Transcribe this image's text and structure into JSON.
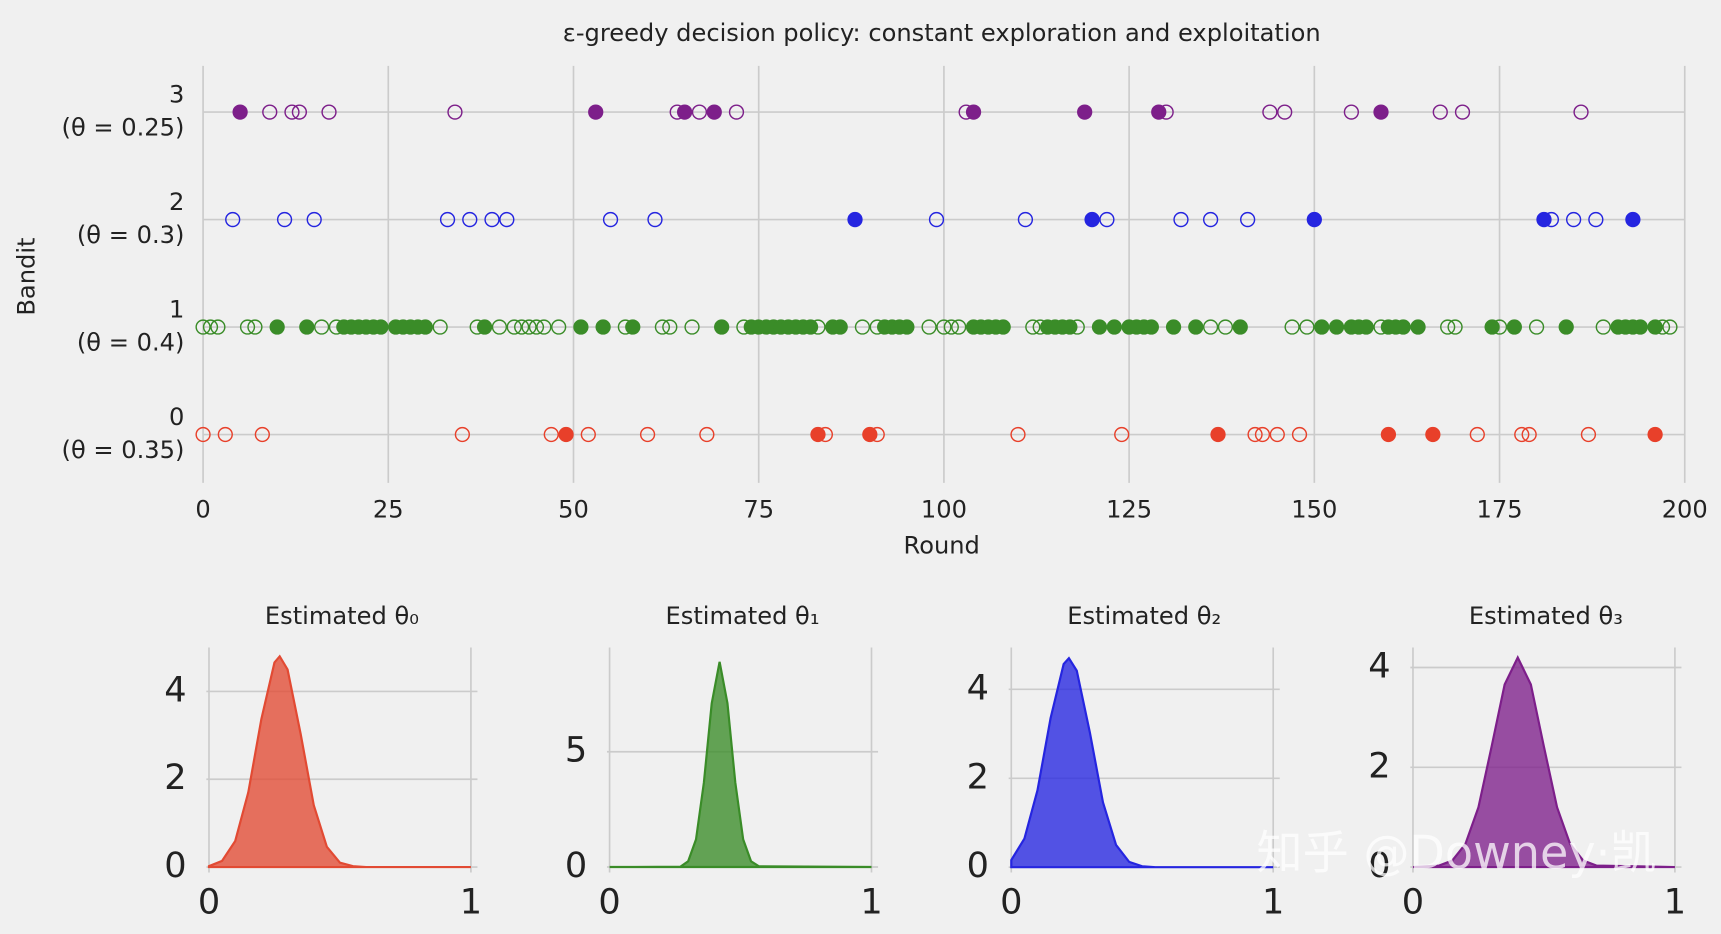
{
  "watermark": "知乎 @Downey·凯",
  "chart_data": [
    {
      "type": "scatter",
      "title": "ε-greedy decision policy: constant exploration and exploitation",
      "xlabel": "Round",
      "ylabel": "Bandit",
      "xlim": [
        0,
        200
      ],
      "xticks": [
        0,
        25,
        50,
        75,
        100,
        125,
        150,
        175,
        200
      ],
      "ylim": [
        -0.45,
        3.43
      ],
      "yticks": [
        0,
        1,
        2,
        3
      ],
      "ytick_notes": [
        "(θ = 0.35)",
        "(θ = 0.4)",
        "(θ = 0.3)",
        "(θ = 0.25)"
      ],
      "grid": true,
      "series": [
        {
          "color": "#e8402a",
          "marker": "open",
          "x": [
            0,
            3,
            8,
            35,
            47,
            52,
            60,
            68,
            84,
            91,
            110,
            124,
            142,
            143,
            145,
            148,
            172,
            178,
            179,
            187
          ],
          "values": [
            0,
            0,
            0,
            0,
            0,
            0,
            0,
            0,
            0,
            0,
            0,
            0,
            0,
            0,
            0,
            0,
            0,
            0,
            0,
            0
          ]
        },
        {
          "color": "#e8402a",
          "marker": "filled",
          "x": [
            49,
            83,
            90,
            137,
            160,
            166,
            196
          ],
          "values": [
            0,
            0,
            0,
            0,
            0,
            0,
            0
          ]
        },
        {
          "color": "#3a8c28",
          "marker": "open",
          "x": [
            0,
            1,
            2,
            6,
            7,
            16,
            18,
            32,
            37,
            40,
            42,
            43,
            44,
            45,
            46,
            48,
            57,
            62,
            63,
            66,
            73,
            83,
            89,
            91,
            98,
            100,
            101,
            102,
            112,
            113,
            118,
            136,
            138,
            147,
            149,
            159,
            168,
            169,
            175,
            180,
            189,
            197,
            198
          ],
          "values": [
            1,
            1,
            1,
            1,
            1,
            1,
            1,
            1,
            1,
            1,
            1,
            1,
            1,
            1,
            1,
            1,
            1,
            1,
            1,
            1,
            1,
            1,
            1,
            1,
            1,
            1,
            1,
            1,
            1,
            1,
            1,
            1,
            1,
            1,
            1,
            1,
            1,
            1,
            1,
            1,
            1,
            1,
            1
          ]
        },
        {
          "color": "#3a8c28",
          "marker": "filled",
          "x": [
            10,
            14,
            19,
            20,
            21,
            22,
            23,
            24,
            26,
            27,
            28,
            29,
            30,
            38,
            51,
            54,
            58,
            70,
            74,
            75,
            76,
            77,
            78,
            79,
            80,
            81,
            82,
            85,
            86,
            92,
            93,
            94,
            95,
            104,
            105,
            106,
            107,
            108,
            114,
            115,
            116,
            117,
            121,
            123,
            125,
            126,
            127,
            128,
            131,
            134,
            140,
            151,
            153,
            155,
            156,
            157,
            160,
            161,
            162,
            164,
            174,
            177,
            184,
            191,
            192,
            193,
            194,
            196
          ],
          "values": [
            1,
            1,
            1,
            1,
            1,
            1,
            1,
            1,
            1,
            1,
            1,
            1,
            1,
            1,
            1,
            1,
            1,
            1,
            1,
            1,
            1,
            1,
            1,
            1,
            1,
            1,
            1,
            1,
            1,
            1,
            1,
            1,
            1,
            1,
            1,
            1,
            1,
            1,
            1,
            1,
            1,
            1,
            1,
            1,
            1,
            1,
            1,
            1,
            1,
            1,
            1,
            1,
            1,
            1,
            1,
            1,
            1,
            1,
            1,
            1,
            1,
            1,
            1,
            1,
            1,
            1,
            1,
            1
          ]
        },
        {
          "color": "#2525e0",
          "marker": "open",
          "x": [
            4,
            11,
            15,
            33,
            36,
            39,
            41,
            55,
            61,
            99,
            111,
            122,
            132,
            136,
            141,
            182,
            185,
            188
          ],
          "values": [
            2,
            2,
            2,
            2,
            2,
            2,
            2,
            2,
            2,
            2,
            2,
            2,
            2,
            2,
            2,
            2,
            2,
            2
          ]
        },
        {
          "color": "#2525e0",
          "marker": "filled",
          "x": [
            88,
            120,
            150,
            181,
            193
          ],
          "values": [
            2,
            2,
            2,
            2,
            2
          ]
        },
        {
          "color": "#7d1f8a",
          "marker": "open",
          "x": [
            9,
            12,
            13,
            17,
            34,
            64,
            67,
            72,
            103,
            130,
            144,
            146,
            155,
            167,
            170,
            186
          ],
          "values": [
            3,
            3,
            3,
            3,
            3,
            3,
            3,
            3,
            3,
            3,
            3,
            3,
            3,
            3,
            3,
            3
          ]
        },
        {
          "color": "#7d1f8a",
          "marker": "filled",
          "x": [
            5,
            53,
            65,
            69,
            104,
            119,
            129,
            159
          ],
          "values": [
            3,
            3,
            3,
            3,
            3,
            3,
            3,
            3
          ]
        }
      ]
    },
    {
      "type": "area",
      "title": "Estimated θ₀",
      "color": "#e24a33",
      "grid": true,
      "xlim": [
        -0.01,
        1.025
      ],
      "xticks": [
        0,
        1
      ],
      "ylim": [
        -0.125,
        5.0
      ],
      "yticks": [
        0,
        2,
        4
      ],
      "x": [
        0,
        0.05,
        0.1,
        0.15,
        0.2,
        0.25,
        0.27,
        0.3,
        0.35,
        0.4,
        0.45,
        0.5,
        0.55,
        0.6,
        1
      ],
      "values": [
        0.02,
        0.14,
        0.59,
        1.7,
        3.37,
        4.66,
        4.8,
        4.5,
        3.03,
        1.41,
        0.46,
        0.1,
        0.02,
        0,
        0
      ]
    },
    {
      "type": "area",
      "title": "Estimated θ₁",
      "color": "#3a8c28",
      "grid": true,
      "xlim": [
        -0.01,
        1.025
      ],
      "xticks": [
        0,
        1
      ],
      "ylim": [
        -0.24,
        9.52
      ],
      "yticks": [
        0,
        5
      ],
      "x": [
        0,
        0.27,
        0.3,
        0.33,
        0.36,
        0.39,
        0.42,
        0.45,
        0.48,
        0.51,
        0.54,
        0.57,
        1
      ],
      "values": [
        0,
        0.01,
        0.25,
        1.2,
        3.66,
        7.1,
        8.9,
        7.1,
        3.66,
        1.2,
        0.25,
        0.03,
        0
      ]
    },
    {
      "type": "area",
      "title": "Estimated θ₂",
      "color": "#2525e0",
      "grid": true,
      "xlim": [
        -0.01,
        1.025
      ],
      "xticks": [
        0,
        1
      ],
      "ylim": [
        -0.12,
        4.94
      ],
      "yticks": [
        0,
        2,
        4
      ],
      "x": [
        0,
        0.05,
        0.1,
        0.15,
        0.2,
        0.22,
        0.25,
        0.3,
        0.35,
        0.4,
        0.45,
        0.5,
        0.55,
        1
      ],
      "values": [
        0.16,
        0.64,
        1.73,
        3.35,
        4.57,
        4.7,
        4.42,
        3.03,
        1.46,
        0.5,
        0.12,
        0.02,
        0,
        0
      ]
    },
    {
      "type": "area",
      "title": "Estimated θ₃",
      "color": "#7d1f8a",
      "grid": true,
      "xlim": [
        -0.01,
        1.025
      ],
      "xticks": [
        0,
        1
      ],
      "ylim": [
        -0.11,
        4.4
      ],
      "yticks": [
        0,
        2,
        4
      ],
      "x": [
        0,
        0.1,
        0.15,
        0.2,
        0.25,
        0.3,
        0.35,
        0.4,
        0.45,
        0.5,
        0.55,
        0.6,
        0.65,
        0.7,
        1
      ],
      "values": [
        0,
        0.03,
        0.13,
        0.46,
        1.2,
        2.41,
        3.66,
        4.2,
        3.66,
        2.41,
        1.2,
        0.46,
        0.13,
        0.03,
        0
      ]
    }
  ]
}
